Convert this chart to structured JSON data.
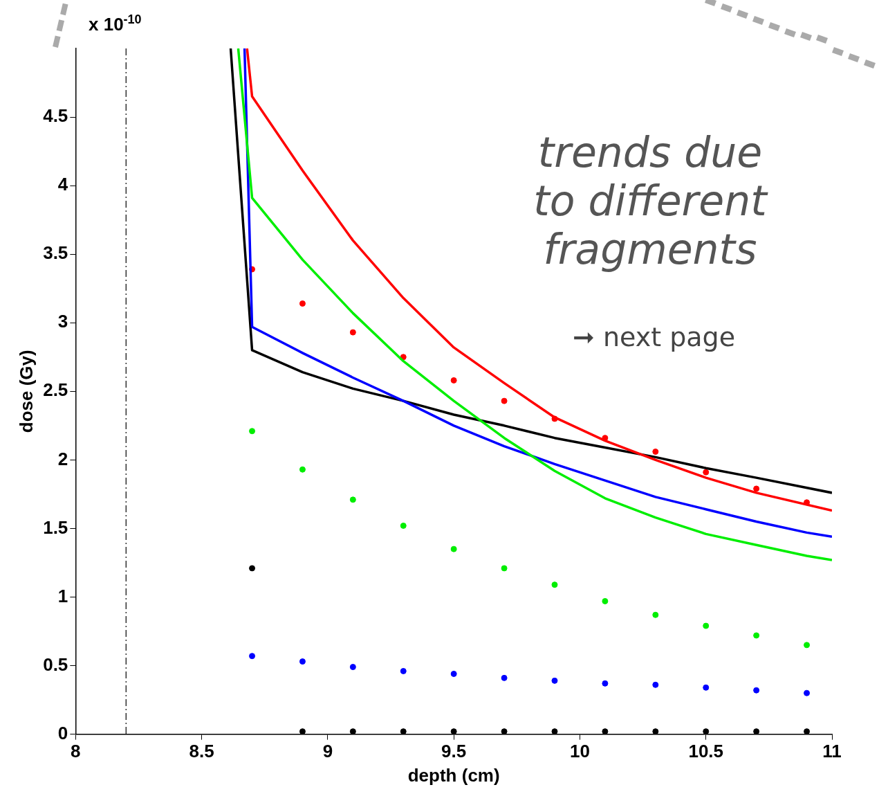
{
  "chart_data": {
    "type": "line",
    "xlabel": "depth (cm)",
    "ylabel": "dose (Gy)",
    "annotations": [
      "x 10$^{-10}$",
      "trends due to different fragments",
      "➞ next page"
    ],
    "xlim": [
      8,
      11
    ],
    "xticks": [
      8,
      8.5,
      9,
      9.5,
      10,
      10.5,
      11
    ],
    "ylim": [
      0,
      5
    ],
    "yticks": [
      0,
      0.5,
      1,
      1.5,
      2,
      2.5,
      3,
      3.5,
      4,
      4.5
    ],
    "grid": false,
    "legend": false,
    "ref_lines": [
      {
        "axis": "x",
        "value": 8.2,
        "color": "#000000",
        "line_style": "dashed"
      }
    ],
    "series": [
      {
        "color": "#ff0000",
        "x": [
          8.68,
          8.7,
          8.9,
          9.1,
          9.3,
          9.5,
          9.7,
          9.9,
          10.1,
          10.3,
          10.5,
          10.7,
          11
        ],
        "values": [
          5,
          4.65,
          4.11,
          3.6,
          3.18,
          2.82,
          2.56,
          2.31,
          2.14,
          2.0,
          1.87,
          1.76,
          1.63
        ]
      },
      {
        "color": "#00ee00",
        "x": [
          8.645,
          8.7,
          8.9,
          9.1,
          9.3,
          9.5,
          9.7,
          9.9,
          10.1,
          10.3,
          10.5,
          10.7,
          10.9,
          11
        ],
        "values": [
          5,
          3.91,
          3.46,
          3.07,
          2.72,
          2.43,
          2.16,
          1.92,
          1.72,
          1.58,
          1.46,
          1.38,
          1.3,
          1.27
        ]
      },
      {
        "color": "#0000ff",
        "x": [
          8.67,
          8.7,
          8.9,
          9.1,
          9.3,
          9.5,
          9.7,
          9.9,
          10.1,
          10.3,
          10.5,
          10.7,
          10.9,
          11
        ],
        "values": [
          5,
          2.97,
          2.78,
          2.6,
          2.43,
          2.25,
          2.1,
          1.97,
          1.85,
          1.73,
          1.64,
          1.55,
          1.47,
          1.44
        ]
      },
      {
        "color": "#000000",
        "x": [
          8.615,
          8.7,
          8.9,
          9.1,
          9.3,
          9.5,
          9.7,
          9.9,
          10.1,
          10.3,
          10.5,
          10.7,
          11
        ],
        "values": [
          5,
          2.8,
          2.64,
          2.52,
          2.43,
          2.33,
          2.25,
          2.16,
          2.09,
          2.02,
          1.94,
          1.87,
          1.76
        ]
      },
      {
        "type": "scatter",
        "marker": "circle",
        "color": "#ff0000",
        "x": [
          8.7,
          8.9,
          9.1,
          9.3,
          9.5,
          9.7,
          9.9,
          10.1,
          10.3,
          10.5,
          10.7,
          10.9
        ],
        "values": [
          3.39,
          3.14,
          2.93,
          2.75,
          2.58,
          2.43,
          2.3,
          2.16,
          2.06,
          1.91,
          1.79,
          1.69
        ]
      },
      {
        "type": "scatter",
        "marker": "circle",
        "color": "#00ee00",
        "x": [
          8.7,
          8.9,
          9.1,
          9.3,
          9.5,
          9.7,
          9.9,
          10.1,
          10.3,
          10.5,
          10.7,
          10.9
        ],
        "values": [
          2.21,
          1.93,
          1.71,
          1.52,
          1.35,
          1.21,
          1.09,
          0.97,
          0.87,
          0.79,
          0.72,
          0.65
        ]
      },
      {
        "type": "scatter",
        "marker": "circle",
        "color": "#0000ff",
        "x": [
          8.7,
          8.9,
          9.1,
          9.3,
          9.5,
          9.7,
          9.9,
          10.1,
          10.3,
          10.5,
          10.7,
          10.9
        ],
        "values": [
          0.57,
          0.53,
          0.49,
          0.46,
          0.44,
          0.41,
          0.39,
          0.37,
          0.36,
          0.34,
          0.32,
          0.3
        ]
      },
      {
        "type": "scatter",
        "marker": "circle",
        "color": "#000000",
        "x": [
          8.7,
          8.9,
          9.1,
          9.3,
          9.5,
          9.7,
          9.9,
          10.1,
          10.3,
          10.5,
          10.7,
          10.9
        ],
        "values": [
          1.21,
          0.02,
          0.02,
          0.02,
          0.02,
          0.02,
          0.02,
          0.02,
          0.02,
          0.02,
          0.02,
          0.02
        ]
      }
    ]
  }
}
